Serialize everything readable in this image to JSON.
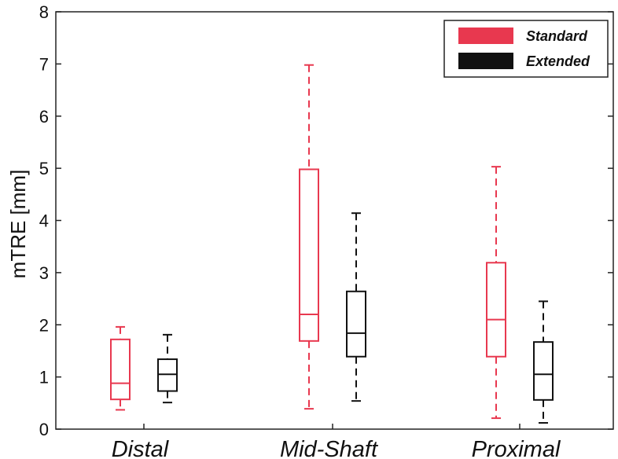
{
  "chart_data": {
    "type": "boxplot",
    "title": "",
    "xlabel": "",
    "ylabel": "mTRE [mm]",
    "ylim": [
      0,
      8
    ],
    "yticks": [
      0,
      1,
      2,
      3,
      4,
      5,
      6,
      7,
      8
    ],
    "categories": [
      "Distal",
      "Mid-Shaft",
      "Proximal"
    ],
    "legend_position": "top-right",
    "grid": false,
    "series": [
      {
        "name": "Standard",
        "color": "#e8384f",
        "boxes": [
          {
            "min": 0.37,
            "q1": 0.57,
            "median": 0.88,
            "q3": 1.72,
            "max": 1.96
          },
          {
            "min": 0.39,
            "q1": 1.69,
            "median": 2.2,
            "q3": 4.98,
            "max": 6.98
          },
          {
            "min": 0.21,
            "q1": 1.39,
            "median": 2.1,
            "q3": 3.19,
            "max": 5.03
          }
        ]
      },
      {
        "name": "Extended",
        "color": "#111111",
        "boxes": [
          {
            "min": 0.51,
            "q1": 0.73,
            "median": 1.05,
            "q3": 1.34,
            "max": 1.81
          },
          {
            "min": 0.54,
            "q1": 1.39,
            "median": 1.84,
            "q3": 2.64,
            "max": 4.14
          },
          {
            "min": 0.12,
            "q1": 0.56,
            "median": 1.05,
            "q3": 1.67,
            "max": 2.45
          }
        ]
      }
    ]
  }
}
